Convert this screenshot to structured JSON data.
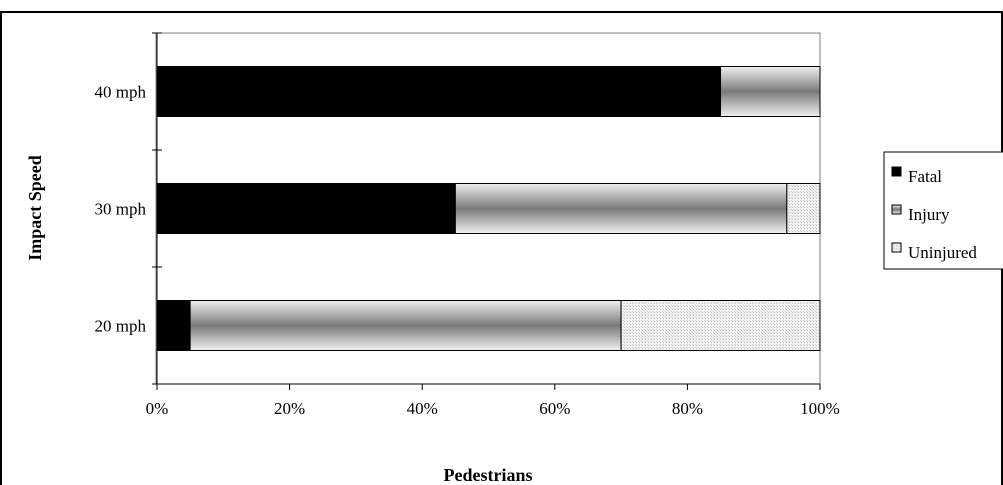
{
  "chart_data": {
    "type": "bar",
    "orientation": "horizontal",
    "stacked": true,
    "percent": true,
    "title": "",
    "xlabel": "Pedestrians",
    "ylabel": "Impact Speed",
    "categories": [
      "20 mph",
      "30 mph",
      "40 mph"
    ],
    "xticks": [
      "0%",
      "20%",
      "40%",
      "60%",
      "80%",
      "100%"
    ],
    "xlim": [
      0,
      100
    ],
    "grid": false,
    "legend_position": "right",
    "series": [
      {
        "name": "Fatal",
        "values": [
          5,
          45,
          85
        ],
        "color": "#000000"
      },
      {
        "name": "Injury",
        "values": [
          65,
          50,
          15
        ],
        "color": "#9a9a9a"
      },
      {
        "name": "Uninjured",
        "values": [
          30,
          5,
          0
        ],
        "color": "#e6e6e6"
      }
    ]
  }
}
